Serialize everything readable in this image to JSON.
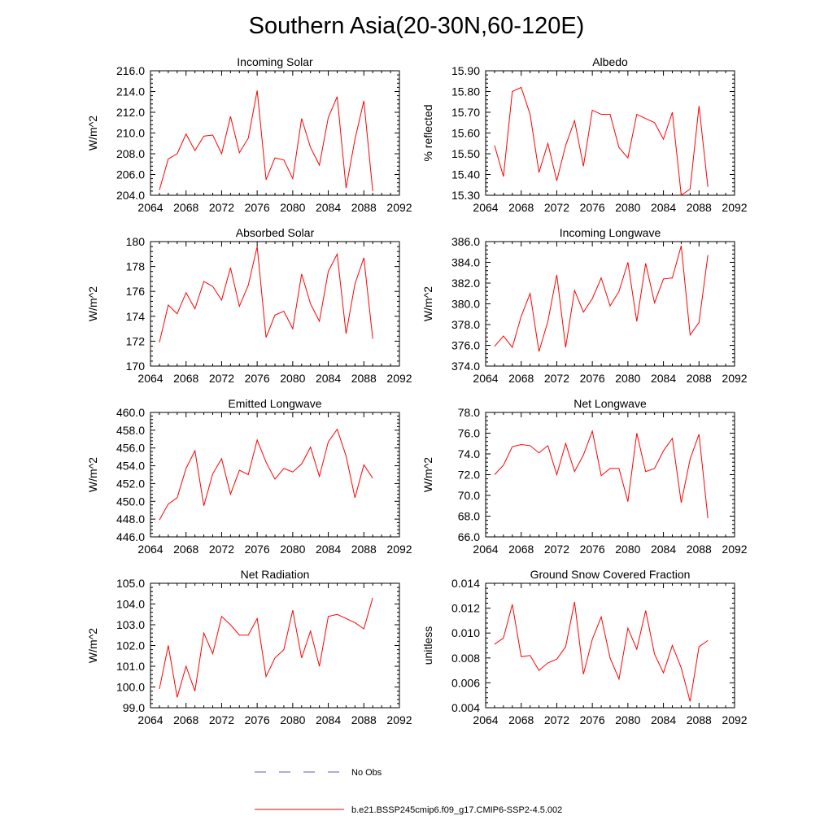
{
  "title": "Southern Asia(20-30N,60-120E)",
  "colors": {
    "model": "#ff0000",
    "obs": "#5a5ab4",
    "axis": "#000000"
  },
  "legend": {
    "obs_label": "No Obs",
    "model_label": "b.e21.BSSP245cmip6.f09_g17.CMIP6-SSP2-4.5.002"
  },
  "chart_data": [
    {
      "type": "line",
      "title": "Incoming Solar",
      "ylabel": "W/m^2",
      "xlim": [
        2064,
        2092
      ],
      "xticks": [
        2064,
        2068,
        2072,
        2076,
        2080,
        2084,
        2088,
        2092
      ],
      "ylim": [
        204.0,
        216.0
      ],
      "yticks": [
        "204.0",
        "206.0",
        "208.0",
        "210.0",
        "212.0",
        "214.0",
        "216.0"
      ],
      "x": [
        2065,
        2066,
        2067,
        2068,
        2069,
        2070,
        2071,
        2072,
        2073,
        2074,
        2075,
        2076,
        2077,
        2078,
        2079,
        2080,
        2081,
        2082,
        2083,
        2084,
        2085,
        2086,
        2087,
        2088,
        2089
      ],
      "series": [
        {
          "values": [
            204.5,
            207.5,
            208.0,
            209.9,
            208.3,
            209.7,
            209.8,
            208.0,
            211.6,
            208.1,
            209.5,
            214.1,
            205.5,
            207.6,
            207.4,
            205.6,
            211.4,
            208.6,
            206.9,
            211.5,
            213.5,
            204.7,
            209.4,
            213.1,
            204.4
          ]
        }
      ]
    },
    {
      "type": "line",
      "title": "Albedo",
      "ylabel": "% reflected",
      "xlim": [
        2064,
        2092
      ],
      "xticks": [
        2064,
        2068,
        2072,
        2076,
        2080,
        2084,
        2088,
        2092
      ],
      "ylim": [
        15.3,
        15.9
      ],
      "yticks": [
        "15.30",
        "15.40",
        "15.50",
        "15.60",
        "15.70",
        "15.80",
        "15.90"
      ],
      "x": [
        2065,
        2066,
        2067,
        2068,
        2069,
        2070,
        2071,
        2072,
        2073,
        2074,
        2075,
        2076,
        2077,
        2078,
        2079,
        2080,
        2081,
        2082,
        2083,
        2084,
        2085,
        2086,
        2087,
        2088,
        2089
      ],
      "series": [
        {
          "values": [
            15.54,
            15.39,
            15.8,
            15.82,
            15.69,
            15.41,
            15.55,
            15.37,
            15.54,
            15.66,
            15.44,
            15.71,
            15.69,
            15.69,
            15.53,
            15.48,
            15.69,
            15.67,
            15.65,
            15.57,
            15.7,
            15.3,
            15.33,
            15.73,
            15.34
          ]
        }
      ]
    },
    {
      "type": "line",
      "title": "Absorbed Solar",
      "ylabel": "W/m^2",
      "xlim": [
        2064,
        2092
      ],
      "xticks": [
        2064,
        2068,
        2072,
        2076,
        2080,
        2084,
        2088,
        2092
      ],
      "ylim": [
        170,
        180
      ],
      "yticks": [
        "170",
        "172",
        "174",
        "176",
        "178",
        "180"
      ],
      "x": [
        2065,
        2066,
        2067,
        2068,
        2069,
        2070,
        2071,
        2072,
        2073,
        2074,
        2075,
        2076,
        2077,
        2078,
        2079,
        2080,
        2081,
        2082,
        2083,
        2084,
        2085,
        2086,
        2087,
        2088,
        2089
      ],
      "series": [
        {
          "values": [
            171.9,
            174.9,
            174.2,
            175.9,
            174.6,
            176.8,
            176.4,
            175.3,
            177.9,
            174.8,
            176.5,
            179.6,
            172.3,
            174.1,
            174.4,
            173.0,
            177.4,
            175.0,
            173.6,
            177.6,
            179.0,
            172.6,
            176.6,
            178.7,
            172.2
          ]
        }
      ]
    },
    {
      "type": "line",
      "title": "Incoming Longwave",
      "ylabel": "W/m^2",
      "xlim": [
        2064,
        2092
      ],
      "xticks": [
        2064,
        2068,
        2072,
        2076,
        2080,
        2084,
        2088,
        2092
      ],
      "ylim": [
        374.0,
        386.0
      ],
      "yticks": [
        "374.0",
        "376.0",
        "378.0",
        "380.0",
        "382.0",
        "384.0",
        "386.0"
      ],
      "x": [
        2065,
        2066,
        2067,
        2068,
        2069,
        2070,
        2071,
        2072,
        2073,
        2074,
        2075,
        2076,
        2077,
        2078,
        2079,
        2080,
        2081,
        2082,
        2083,
        2084,
        2085,
        2086,
        2087,
        2088,
        2089
      ],
      "series": [
        {
          "values": [
            375.9,
            376.9,
            375.8,
            378.8,
            381.0,
            375.4,
            378.3,
            382.8,
            375.8,
            381.3,
            379.2,
            380.5,
            382.5,
            379.8,
            381.2,
            384.0,
            378.3,
            383.9,
            380.1,
            382.4,
            382.5,
            385.6,
            377.0,
            378.2,
            384.7
          ]
        }
      ]
    },
    {
      "type": "line",
      "title": "Emitted Longwave",
      "ylabel": "W/m^2",
      "xlim": [
        2064,
        2092
      ],
      "xticks": [
        2064,
        2068,
        2072,
        2076,
        2080,
        2084,
        2088,
        2092
      ],
      "ylim": [
        446.0,
        460.0
      ],
      "yticks": [
        "446.0",
        "448.0",
        "450.0",
        "452.0",
        "454.0",
        "456.0",
        "458.0",
        "460.0"
      ],
      "x": [
        2065,
        2066,
        2067,
        2068,
        2069,
        2070,
        2071,
        2072,
        2073,
        2074,
        2075,
        2076,
        2077,
        2078,
        2079,
        2080,
        2081,
        2082,
        2083,
        2084,
        2085,
        2086,
        2087,
        2088,
        2089
      ],
      "series": [
        {
          "values": [
            447.9,
            449.7,
            450.4,
            453.7,
            455.7,
            449.5,
            453.1,
            454.8,
            450.8,
            453.5,
            453.0,
            456.9,
            454.4,
            452.5,
            453.7,
            453.3,
            454.2,
            456.1,
            452.8,
            456.7,
            458.1,
            455.1,
            450.4,
            454.1,
            452.6
          ]
        }
      ]
    },
    {
      "type": "line",
      "title": "Net Longwave",
      "ylabel": "W/m^2",
      "xlim": [
        2064,
        2092
      ],
      "xticks": [
        2064,
        2068,
        2072,
        2076,
        2080,
        2084,
        2088,
        2092
      ],
      "ylim": [
        66.0,
        78.0
      ],
      "yticks": [
        "66.0",
        "68.0",
        "70.0",
        "72.0",
        "74.0",
        "76.0",
        "78.0"
      ],
      "x": [
        2065,
        2066,
        2067,
        2068,
        2069,
        2070,
        2071,
        2072,
        2073,
        2074,
        2075,
        2076,
        2077,
        2078,
        2079,
        2080,
        2081,
        2082,
        2083,
        2084,
        2085,
        2086,
        2087,
        2088,
        2089
      ],
      "series": [
        {
          "values": [
            72.0,
            72.9,
            74.7,
            74.9,
            74.8,
            74.1,
            74.8,
            72.0,
            75.0,
            72.3,
            73.9,
            76.2,
            71.9,
            72.6,
            72.6,
            69.4,
            76.0,
            72.3,
            72.6,
            74.3,
            75.5,
            69.3,
            73.5,
            75.9,
            67.8
          ]
        }
      ]
    },
    {
      "type": "line",
      "title": "Net Radiation",
      "ylabel": "W/m^2",
      "xlim": [
        2064,
        2092
      ],
      "xticks": [
        2064,
        2068,
        2072,
        2076,
        2080,
        2084,
        2088,
        2092
      ],
      "ylim": [
        99.0,
        105.0
      ],
      "yticks": [
        "99.0",
        "100.0",
        "101.0",
        "102.0",
        "103.0",
        "104.0",
        "105.0"
      ],
      "x": [
        2065,
        2066,
        2067,
        2068,
        2069,
        2070,
        2071,
        2072,
        2073,
        2074,
        2075,
        2076,
        2077,
        2078,
        2079,
        2080,
        2081,
        2082,
        2083,
        2084,
        2085,
        2086,
        2087,
        2088,
        2089
      ],
      "series": [
        {
          "values": [
            99.9,
            102.0,
            99.5,
            101.0,
            99.8,
            102.6,
            101.6,
            103.4,
            103.0,
            102.5,
            102.5,
            103.3,
            100.5,
            101.4,
            101.8,
            103.7,
            101.4,
            102.7,
            101.0,
            103.4,
            103.5,
            103.3,
            103.1,
            102.8,
            104.3
          ]
        }
      ]
    },
    {
      "type": "line",
      "title": "Ground Snow Covered Fraction",
      "ylabel": "unitless",
      "xlim": [
        2064,
        2092
      ],
      "xticks": [
        2064,
        2068,
        2072,
        2076,
        2080,
        2084,
        2088,
        2092
      ],
      "ylim": [
        0.004,
        0.014
      ],
      "yticks": [
        "0.004",
        "0.006",
        "0.008",
        "0.010",
        "0.012",
        "0.014"
      ],
      "x": [
        2065,
        2066,
        2067,
        2068,
        2069,
        2070,
        2071,
        2072,
        2073,
        2074,
        2075,
        2076,
        2077,
        2078,
        2079,
        2080,
        2081,
        2082,
        2083,
        2084,
        2085,
        2086,
        2087,
        2088,
        2089
      ],
      "series": [
        {
          "values": [
            0.0091,
            0.0096,
            0.0123,
            0.0081,
            0.0082,
            0.007,
            0.0076,
            0.0079,
            0.0089,
            0.0125,
            0.0067,
            0.0095,
            0.0113,
            0.008,
            0.0063,
            0.0104,
            0.0087,
            0.0118,
            0.0083,
            0.0068,
            0.009,
            0.0072,
            0.0045,
            0.0089,
            0.0094
          ]
        }
      ]
    }
  ]
}
